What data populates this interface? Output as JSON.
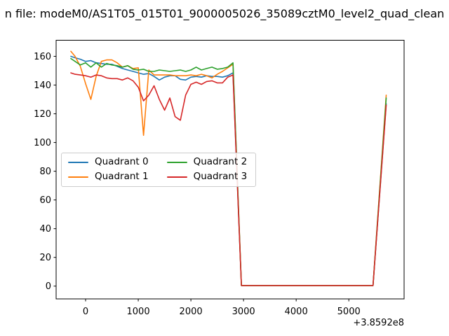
{
  "title": "n file: modeM0/AS1T05_015T01_9000005026_35089cztM0_level2_quad_clean",
  "chart_data": {
    "type": "line",
    "title_visible_text": "n file: modeM0/AS1T05_015T01_9000005026_35089cztM0_level2_quad_clean",
    "x_offset_label": "+3.8592e8",
    "xlim": [
      -560,
      6050
    ],
    "ylim": [
      -8.9,
      171.2
    ],
    "x_ticks": [
      0,
      1000,
      2000,
      3000,
      4000,
      5000
    ],
    "y_ticks": [
      0,
      20,
      40,
      60,
      80,
      100,
      120,
      140,
      160
    ],
    "grid": false,
    "legend_position": "center-left",
    "x": [
      -280,
      -200,
      -100,
      0,
      100,
      200,
      300,
      400,
      500,
      600,
      700,
      800,
      900,
      1000,
      1100,
      1200,
      1300,
      1400,
      1500,
      1600,
      1700,
      1800,
      1900,
      2000,
      2100,
      2200,
      2300,
      2400,
      2500,
      2600,
      2700,
      2800,
      2960,
      5460,
      5710
    ],
    "series": [
      {
        "name": "Quadrant 0",
        "color": "#1f77b4",
        "y": [
          160,
          159,
          158,
          156.5,
          157,
          155.5,
          155,
          154.5,
          154.5,
          153,
          151.5,
          150.5,
          149.5,
          148.5,
          147.5,
          148,
          146,
          143.5,
          145.5,
          146.5,
          146.5,
          144,
          143.5,
          145.5,
          146,
          145.5,
          146.5,
          146,
          146,
          145.5,
          146.5,
          148.5,
          0.4,
          0.4,
          127
        ]
      },
      {
        "name": "Quadrant 1",
        "color": "#ff7f0e",
        "y": [
          163.5,
          160,
          153,
          141,
          130,
          146,
          156.5,
          157.5,
          157.5,
          155.5,
          152.5,
          153.5,
          151.5,
          152,
          105,
          150.5,
          147,
          147,
          147,
          147,
          146.5,
          146.5,
          146.5,
          147,
          146.5,
          147.5,
          146.5,
          145,
          147.5,
          149.5,
          152,
          154.5,
          0.4,
          0.4,
          133
        ]
      },
      {
        "name": "Quadrant 2",
        "color": "#2ca02c",
        "y": [
          158.5,
          156.5,
          154,
          155.5,
          152.5,
          155.5,
          152.5,
          155,
          154,
          153.5,
          152.5,
          153.5,
          151,
          150.5,
          151,
          149.5,
          149.5,
          150.5,
          150,
          149.5,
          150,
          150.5,
          149.5,
          150.5,
          152.5,
          150.5,
          151.5,
          152.5,
          151,
          151.5,
          152.5,
          155.5,
          0.4,
          0.4,
          131
        ]
      },
      {
        "name": "Quadrant 3",
        "color": "#d62728",
        "y": [
          148.5,
          147.5,
          147,
          146.5,
          145.5,
          147,
          146.5,
          145,
          144.5,
          144.5,
          143.5,
          145,
          143,
          138.5,
          129,
          133,
          139.5,
          130,
          122.5,
          131,
          118,
          115.5,
          133,
          140.5,
          142,
          140.5,
          142.5,
          143,
          141.5,
          141.5,
          145.5,
          147,
          0.4,
          0.4,
          126
        ]
      }
    ]
  }
}
